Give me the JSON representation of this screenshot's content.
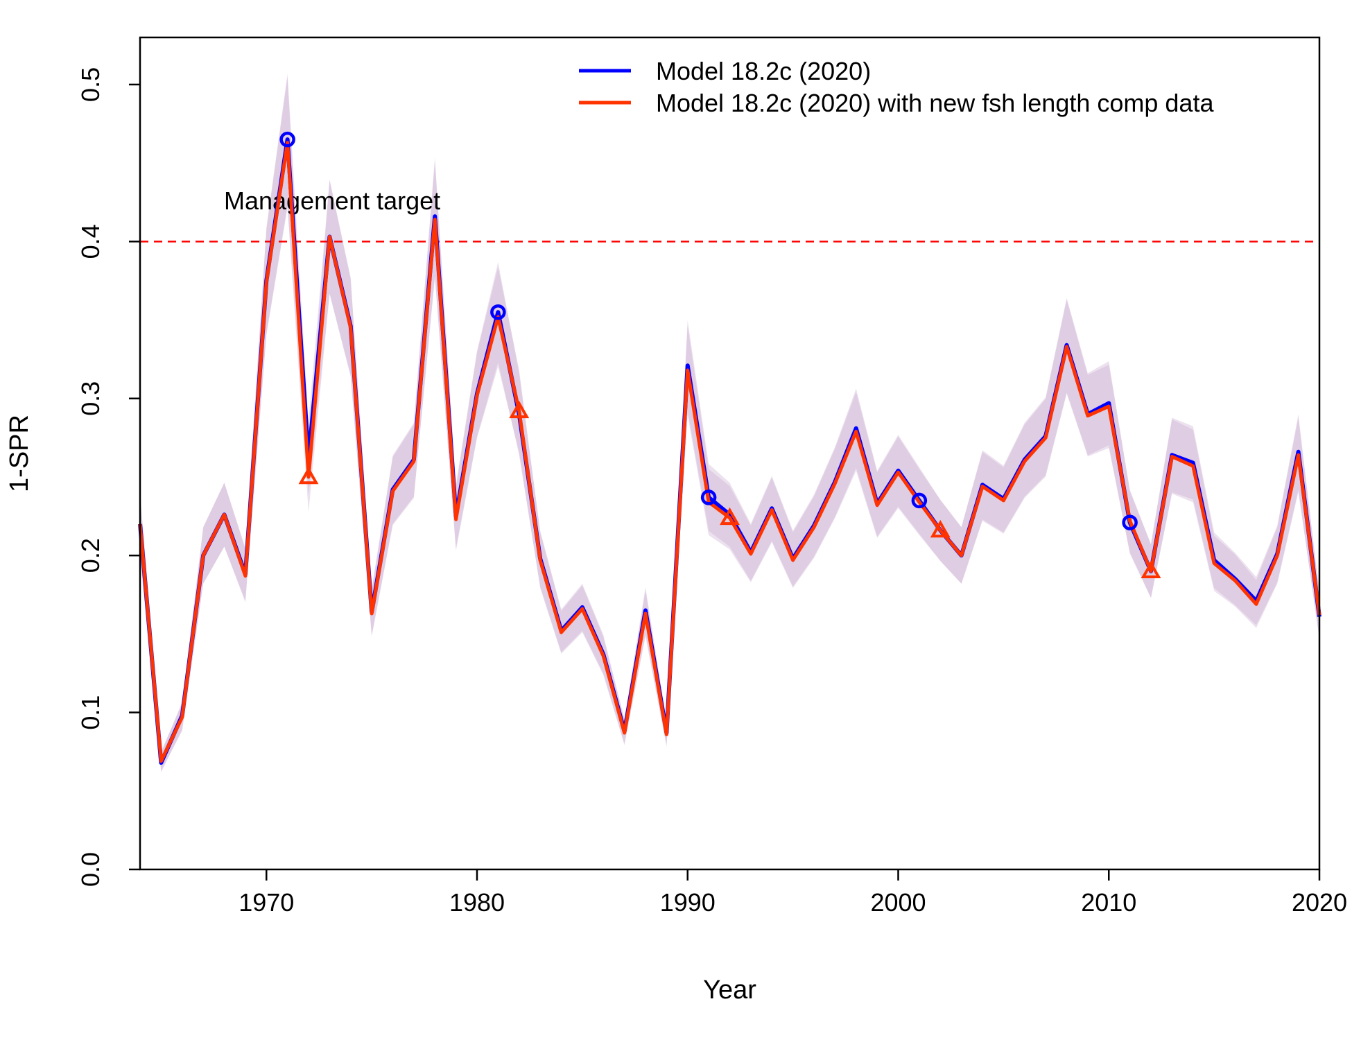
{
  "chart_data": {
    "type": "line",
    "xlabel": "Year",
    "ylabel": "1-SPR",
    "xlim": [
      1964,
      2020
    ],
    "ylim": [
      0,
      0.53
    ],
    "x_ticks": [
      1970,
      1980,
      1990,
      2000,
      2010,
      2020
    ],
    "y_ticks": [
      0.0,
      0.1,
      0.2,
      0.3,
      0.4,
      0.5
    ],
    "x_tick_labels": [
      "1970",
      "1980",
      "1990",
      "2000",
      "2010",
      "2020"
    ],
    "y_tick_labels": [
      "0.0",
      "0.1",
      "0.2",
      "0.3",
      "0.4",
      "0.5"
    ],
    "legend_position": "top-right",
    "reference_line": {
      "value": 0.4,
      "label": "Management target",
      "color": "#ff0000",
      "style": "dashed"
    },
    "band_color": "#c9a8cf",
    "x": [
      1964,
      1965,
      1966,
      1967,
      1968,
      1969,
      1970,
      1971,
      1972,
      1973,
      1974,
      1975,
      1976,
      1977,
      1978,
      1979,
      1980,
      1981,
      1982,
      1983,
      1984,
      1985,
      1986,
      1987,
      1988,
      1989,
      1990,
      1991,
      1992,
      1993,
      1994,
      1995,
      1996,
      1997,
      1998,
      1999,
      2000,
      2001,
      2002,
      2003,
      2004,
      2005,
      2006,
      2007,
      2008,
      2009,
      2010,
      2011,
      2012,
      2013,
      2014,
      2015,
      2016,
      2017,
      2018,
      2019,
      2020
    ],
    "series": [
      {
        "name": "Model 18.2c (2020)",
        "color": "#0000ff",
        "marker": "circle",
        "values": [
          0.22,
          0.068,
          0.098,
          0.2,
          0.226,
          0.188,
          0.375,
          0.465,
          0.262,
          0.403,
          0.346,
          0.164,
          0.242,
          0.261,
          0.416,
          0.225,
          0.303,
          0.355,
          0.29,
          0.198,
          0.152,
          0.167,
          0.137,
          0.088,
          0.165,
          0.087,
          0.321,
          0.237,
          0.226,
          0.202,
          0.23,
          0.198,
          0.219,
          0.247,
          0.281,
          0.233,
          0.254,
          0.235,
          0.216,
          0.2,
          0.245,
          0.236,
          0.261,
          0.276,
          0.334,
          0.29,
          0.297,
          0.221,
          0.19,
          0.264,
          0.259,
          0.197,
          0.185,
          0.171,
          0.201,
          0.266,
          0.161
        ],
        "markers": [
          {
            "x": 1971,
            "y": 0.465
          },
          {
            "x": 1981,
            "y": 0.355
          },
          {
            "x": 1991,
            "y": 0.237
          },
          {
            "x": 2001,
            "y": 0.235
          },
          {
            "x": 2011,
            "y": 0.221
          }
        ]
      },
      {
        "name": "Model 18.2c (2020) with new fsh length comp data",
        "color": "#ff3300",
        "marker": "triangle",
        "values": [
          0.22,
          0.069,
          0.097,
          0.2,
          0.226,
          0.187,
          0.374,
          0.463,
          0.25,
          0.403,
          0.345,
          0.163,
          0.241,
          0.26,
          0.414,
          0.223,
          0.302,
          0.352,
          0.292,
          0.197,
          0.151,
          0.166,
          0.136,
          0.087,
          0.163,
          0.086,
          0.318,
          0.234,
          0.224,
          0.201,
          0.229,
          0.197,
          0.218,
          0.246,
          0.279,
          0.232,
          0.253,
          0.234,
          0.216,
          0.2,
          0.244,
          0.235,
          0.26,
          0.275,
          0.333,
          0.289,
          0.295,
          0.222,
          0.19,
          0.263,
          0.257,
          0.195,
          0.184,
          0.169,
          0.2,
          0.264,
          0.162
        ],
        "markers": [
          {
            "x": 1972,
            "y": 0.25
          },
          {
            "x": 1982,
            "y": 0.292
          },
          {
            "x": 1992,
            "y": 0.224
          },
          {
            "x": 2002,
            "y": 0.216
          },
          {
            "x": 2012,
            "y": 0.19
          }
        ]
      }
    ]
  }
}
